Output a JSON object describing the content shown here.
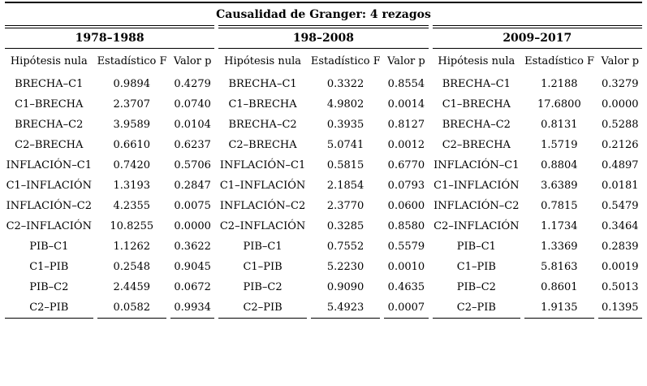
{
  "colors": {
    "text": "#000000",
    "background": "#ffffff",
    "rule": "#000000"
  },
  "chart_data": {
    "type": "table",
    "title": "Causalidad de Granger: 4 rezagos",
    "columns": [
      "Hipótesis nula",
      "Estadístico F",
      "Valor p"
    ],
    "groups": [
      {
        "period": "1978–1988",
        "rows": [
          [
            "BRECHA–C1",
            "0.9894",
            "0.4279"
          ],
          [
            "C1–BRECHA",
            "2.3707",
            "0.0740"
          ],
          [
            "BRECHA–C2",
            "3.9589",
            "0.0104"
          ],
          [
            "C2–BRECHA",
            "0.6610",
            "0.6237"
          ],
          [
            "INFLACIÓN–C1",
            "0.7420",
            "0.5706"
          ],
          [
            "C1–INFLACIÓN",
            "1.3193",
            "0.2847"
          ],
          [
            "INFLACIÓN–C2",
            "4.2355",
            "0.0075"
          ],
          [
            "C2–INFLACIÓN",
            "10.8255",
            "0.0000"
          ],
          [
            "PIB–C1",
            "1.1262",
            "0.3622"
          ],
          [
            "C1–PIB",
            "0.2548",
            "0.9045"
          ],
          [
            "PIB–C2",
            "2.4459",
            "0.0672"
          ],
          [
            "C2–PIB",
            "0.0582",
            "0.9934"
          ]
        ]
      },
      {
        "period": "198–2008",
        "rows": [
          [
            "BRECHA–C1",
            "0.3322",
            "0.8554"
          ],
          [
            "C1–BRECHA",
            "4.9802",
            "0.0014"
          ],
          [
            "BRECHA–C2",
            "0.3935",
            "0.8127"
          ],
          [
            "C2–BRECHA",
            "5.0741",
            "0.0012"
          ],
          [
            "INFLACIÓN–C1",
            "0.5815",
            "0.6770"
          ],
          [
            "C1–INFLACIÓN",
            "2.1854",
            "0.0793"
          ],
          [
            "INFLACIÓN–C2",
            "2.3770",
            "0.0600"
          ],
          [
            "C2–INFLACIÓN",
            "0.3285",
            "0.8580"
          ],
          [
            "PIB–C1",
            "0.7552",
            "0.5579"
          ],
          [
            "C1–PIB",
            "5.2230",
            "0.0010"
          ],
          [
            "PIB–C2",
            "0.9090",
            "0.4635"
          ],
          [
            "C2–PIB",
            "5.4923",
            "0.0007"
          ]
        ]
      },
      {
        "period": "2009–2017",
        "rows": [
          [
            "BRECHA–C1",
            "1.2188",
            "0.3279"
          ],
          [
            "C1–BRECHA",
            "17.6800",
            "0.0000"
          ],
          [
            "BRECHA–C2",
            "0.8131",
            "0.5288"
          ],
          [
            "C2–BRECHA",
            "1.5719",
            "0.2126"
          ],
          [
            "INFLACIÓN–C1",
            "0.8804",
            "0.4897"
          ],
          [
            "C1–INFLACIÓN",
            "3.6389",
            "0.0181"
          ],
          [
            "INFLACIÓN–C2",
            "0.7815",
            "0.5479"
          ],
          [
            "C2–INFLACIÓN",
            "1.1734",
            "0.3464"
          ],
          [
            "PIB–C1",
            "1.3369",
            "0.2839"
          ],
          [
            "C1–PIB",
            "5.8163",
            "0.0019"
          ],
          [
            "PIB–C2",
            "0.8601",
            "0.5013"
          ],
          [
            "C2–PIB",
            "1.9135",
            "0.1395"
          ]
        ]
      }
    ]
  }
}
